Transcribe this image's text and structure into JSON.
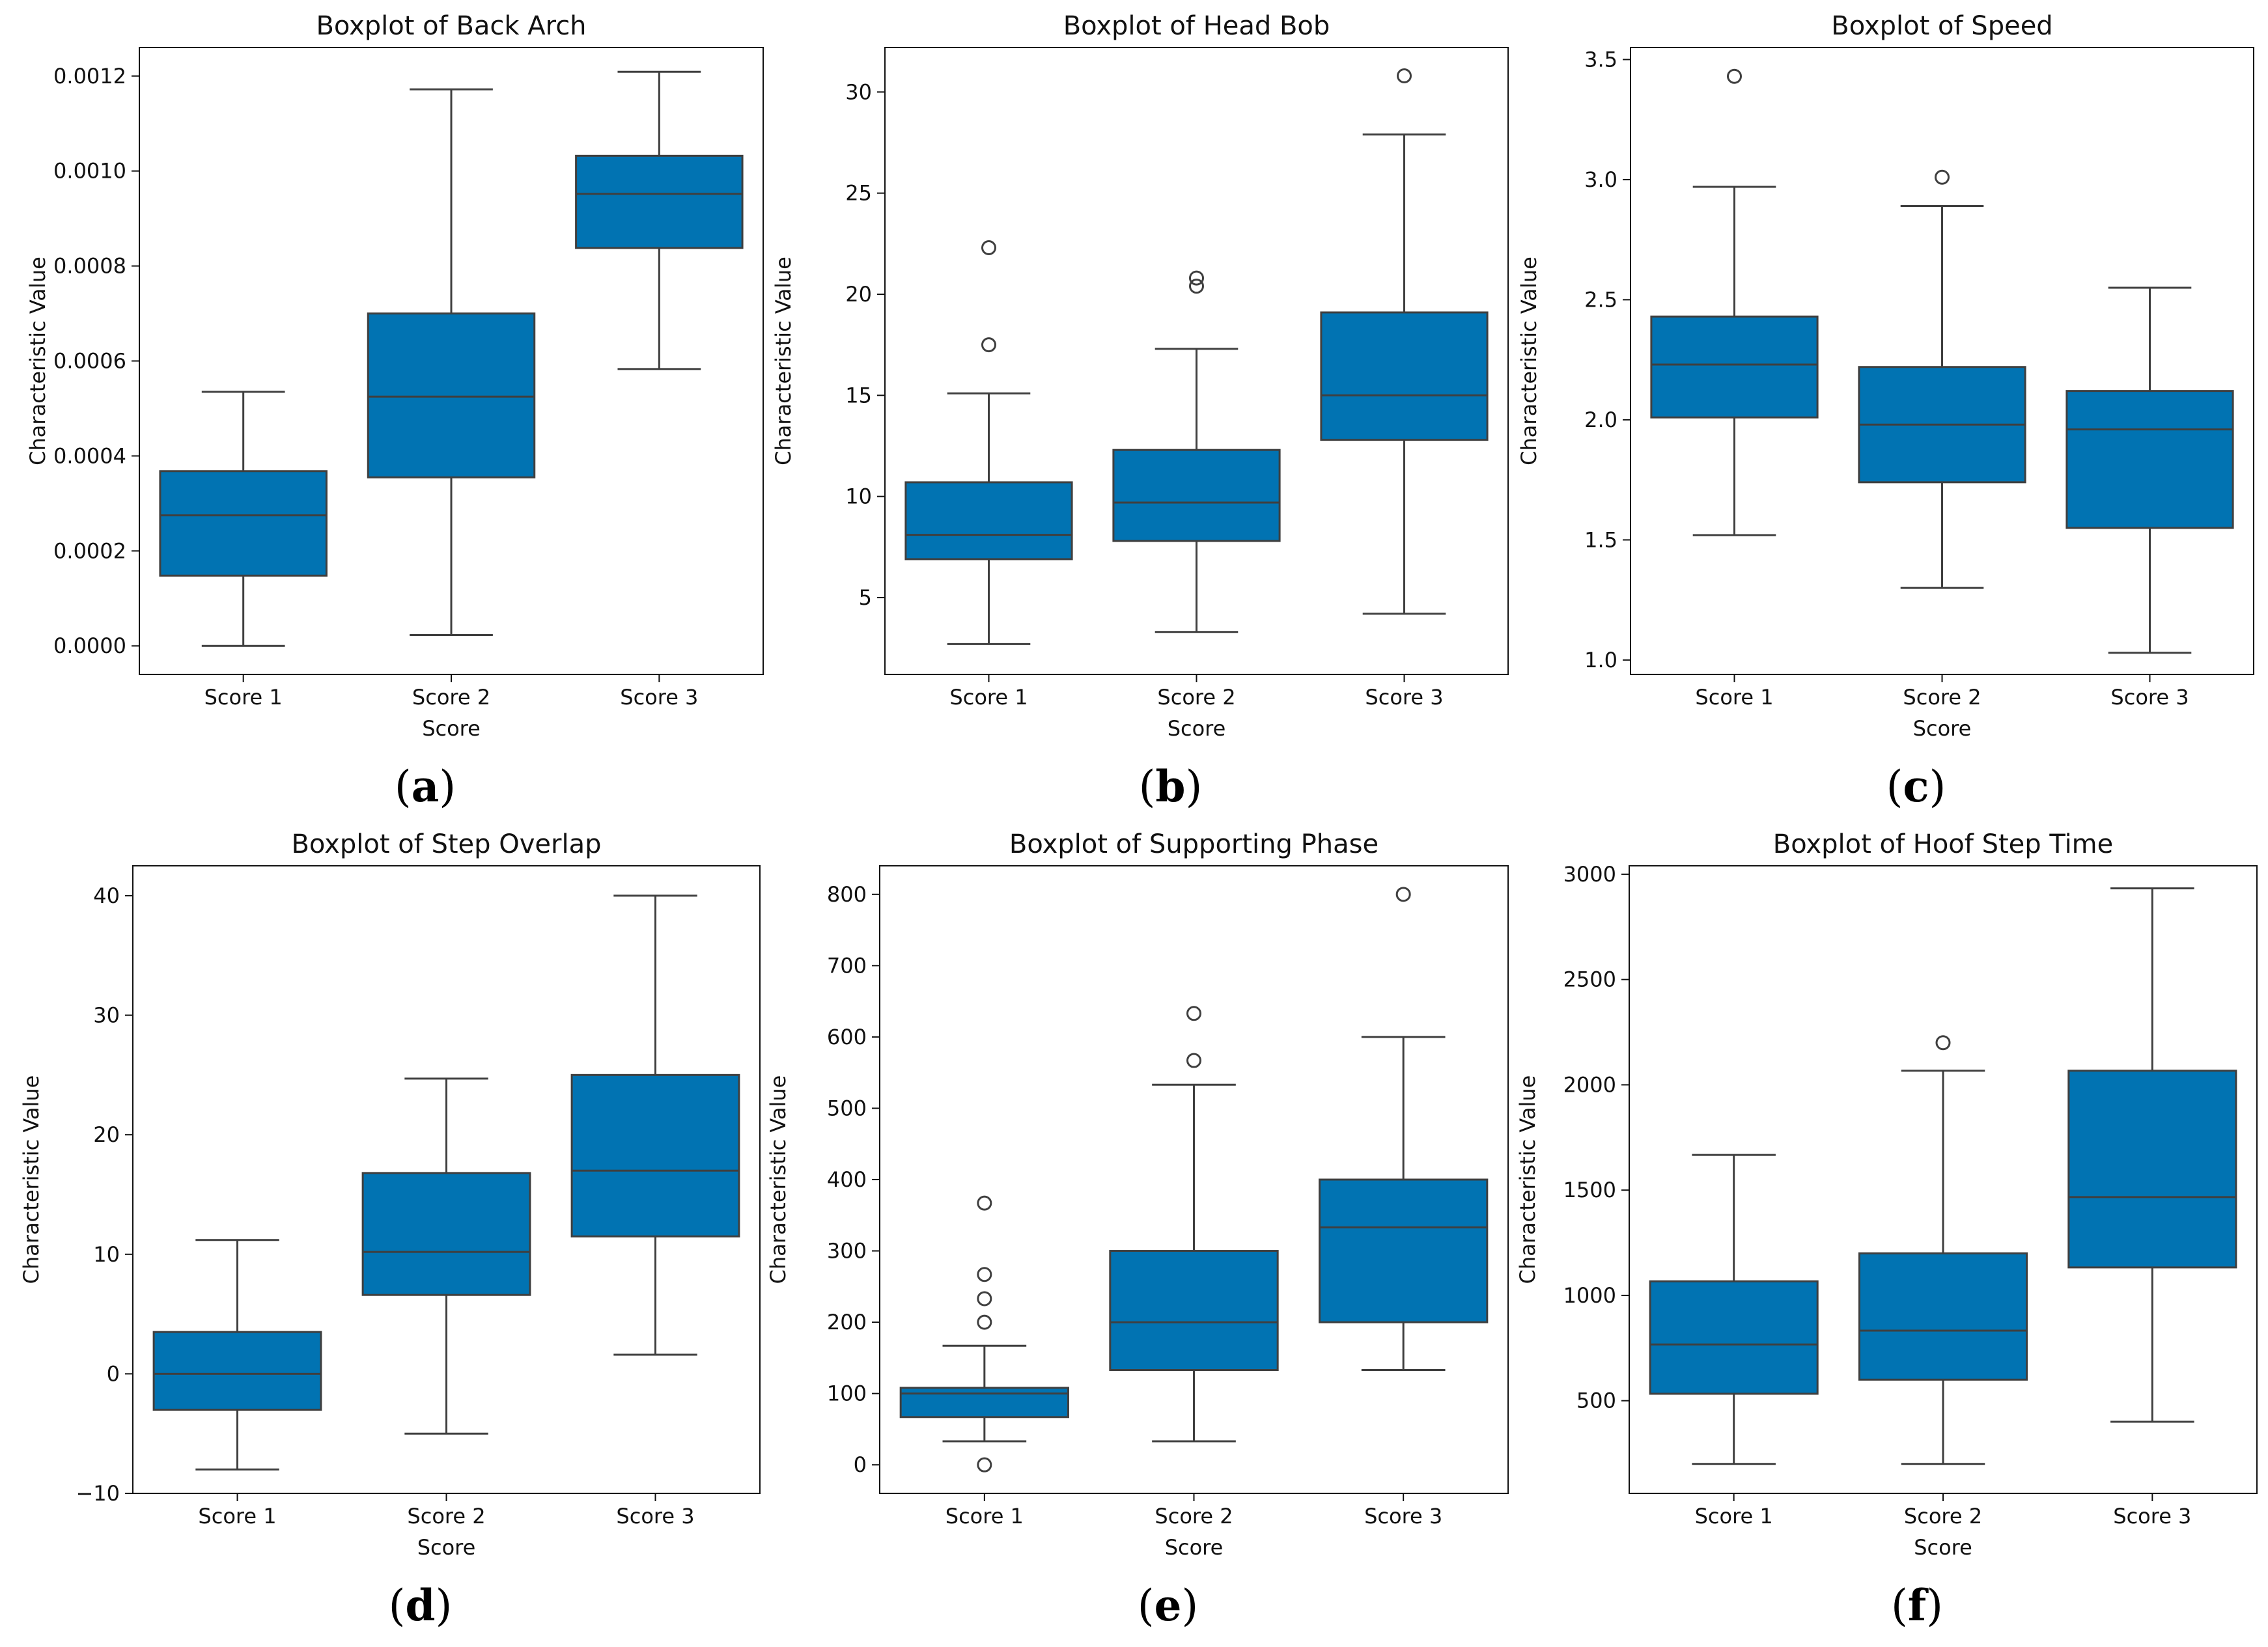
{
  "chart_data": [
    {
      "type": "boxplot",
      "panel_label": "a",
      "title": "Boxplot of Back Arch",
      "xlabel": "Score",
      "ylabel": "Characteristic Value",
      "ylim": [
        -6e-05,
        0.00126
      ],
      "yticks": [
        0,
        0.0002,
        0.0004,
        0.0006,
        0.0008,
        0.001,
        0.0012
      ],
      "ytick_labels": [
        "0.0000",
        "0.0002",
        "0.0004",
        "0.0006",
        "0.0008",
        "0.0010",
        "0.0012"
      ],
      "color": "#0173b2",
      "categories": [
        "Score 1",
        "Score 2",
        "Score 3"
      ],
      "boxes": [
        {
          "whisker_low": 0.0,
          "q1": 0.000148,
          "median": 0.000275,
          "q3": 0.000368,
          "whisker_high": 0.000535,
          "outliers": []
        },
        {
          "whisker_low": 2.3e-05,
          "q1": 0.000355,
          "median": 0.000525,
          "q3": 0.0007,
          "whisker_high": 0.001172,
          "outliers": []
        },
        {
          "whisker_low": 0.000583,
          "q1": 0.000838,
          "median": 0.000952,
          "q3": 0.001032,
          "whisker_high": 0.001209,
          "outliers": []
        }
      ]
    },
    {
      "type": "boxplot",
      "panel_label": "b",
      "title": "Boxplot of Head Bob",
      "xlabel": "Score",
      "ylabel": "Characteristic Value",
      "ylim": [
        1.2,
        32.2
      ],
      "yticks": [
        5,
        10,
        15,
        20,
        25,
        30
      ],
      "ytick_labels": [
        "5",
        "10",
        "15",
        "20",
        "25",
        "30"
      ],
      "color": "#0173b2",
      "categories": [
        "Score 1",
        "Score 2",
        "Score 3"
      ],
      "boxes": [
        {
          "whisker_low": 2.7,
          "q1": 6.9,
          "median": 8.1,
          "q3": 10.7,
          "whisker_high": 15.1,
          "outliers": [
            17.5,
            22.3
          ]
        },
        {
          "whisker_low": 3.3,
          "q1": 7.8,
          "median": 9.7,
          "q3": 12.3,
          "whisker_high": 17.3,
          "outliers": [
            20.4,
            20.8
          ]
        },
        {
          "whisker_low": 4.2,
          "q1": 12.8,
          "median": 15.0,
          "q3": 19.1,
          "whisker_high": 27.9,
          "outliers": [
            30.8
          ]
        }
      ]
    },
    {
      "type": "boxplot",
      "panel_label": "c",
      "title": "Boxplot of Speed",
      "xlabel": "Score",
      "ylabel": "Characteristic Value",
      "ylim": [
        0.94,
        3.55
      ],
      "yticks": [
        1.0,
        1.5,
        2.0,
        2.5,
        3.0,
        3.5
      ],
      "ytick_labels": [
        "1.0",
        "1.5",
        "2.0",
        "2.5",
        "3.0",
        "3.5"
      ],
      "color": "#0173b2",
      "categories": [
        "Score 1",
        "Score 2",
        "Score 3"
      ],
      "boxes": [
        {
          "whisker_low": 1.52,
          "q1": 2.01,
          "median": 2.23,
          "q3": 2.43,
          "whisker_high": 2.97,
          "outliers": [
            3.43
          ]
        },
        {
          "whisker_low": 1.3,
          "q1": 1.74,
          "median": 1.98,
          "q3": 2.22,
          "whisker_high": 2.89,
          "outliers": [
            3.01
          ]
        },
        {
          "whisker_low": 1.03,
          "q1": 1.55,
          "median": 1.96,
          "q3": 2.12,
          "whisker_high": 2.55,
          "outliers": []
        }
      ]
    },
    {
      "type": "boxplot",
      "panel_label": "d",
      "title": "Boxplot of Step Overlap",
      "xlabel": "Score",
      "ylabel": "Characteristic Value",
      "ylim": [
        -10.0,
        42.5
      ],
      "yticks": [
        -10,
        0,
        10,
        20,
        30,
        40
      ],
      "ytick_labels": [
        "−10",
        "0",
        "10",
        "20",
        "30",
        "40"
      ],
      "color": "#0173b2",
      "categories": [
        "Score 1",
        "Score 2",
        "Score 3"
      ],
      "boxes": [
        {
          "whisker_low": -8.0,
          "q1": -3.0,
          "median": 0.0,
          "q3": 3.5,
          "whisker_high": 11.2,
          "outliers": []
        },
        {
          "whisker_low": -5.0,
          "q1": 6.6,
          "median": 10.2,
          "q3": 16.8,
          "whisker_high": 24.7,
          "outliers": []
        },
        {
          "whisker_low": 1.6,
          "q1": 11.5,
          "median": 17.0,
          "q3": 25.0,
          "whisker_high": 40.0,
          "outliers": []
        }
      ]
    },
    {
      "type": "boxplot",
      "panel_label": "e",
      "title": "Boxplot of Supporting Phase",
      "xlabel": "Score",
      "ylabel": "Characteristic Value",
      "ylim": [
        -40,
        840
      ],
      "yticks": [
        0,
        100,
        200,
        300,
        400,
        500,
        600,
        700,
        800
      ],
      "ytick_labels": [
        "0",
        "100",
        "200",
        "300",
        "400",
        "500",
        "600",
        "700",
        "800"
      ],
      "color": "#0173b2",
      "categories": [
        "Score 1",
        "Score 2",
        "Score 3"
      ],
      "boxes": [
        {
          "whisker_low": 33,
          "q1": 67,
          "median": 100,
          "q3": 108,
          "whisker_high": 167,
          "outliers": [
            0,
            200,
            233,
            267,
            367
          ]
        },
        {
          "whisker_low": 33,
          "q1": 133,
          "median": 200,
          "q3": 300,
          "whisker_high": 533,
          "outliers": [
            567,
            633
          ]
        },
        {
          "whisker_low": 133,
          "q1": 200,
          "median": 333,
          "q3": 400,
          "whisker_high": 600,
          "outliers": [
            800
          ]
        }
      ]
    },
    {
      "type": "boxplot",
      "panel_label": "f",
      "title": "Boxplot of Hoof Step Time",
      "xlabel": "Score",
      "ylabel": "Characteristic Value",
      "ylim": [
        60,
        3040
      ],
      "yticks": [
        500,
        1000,
        1500,
        2000,
        2500,
        3000
      ],
      "ytick_labels": [
        "500",
        "1000",
        "1500",
        "2000",
        "2500",
        "3000"
      ],
      "color": "#0173b2",
      "categories": [
        "Score 1",
        "Score 2",
        "Score 3"
      ],
      "boxes": [
        {
          "whisker_low": 200,
          "q1": 533,
          "median": 767,
          "q3": 1067,
          "whisker_high": 1667,
          "outliers": []
        },
        {
          "whisker_low": 200,
          "q1": 600,
          "median": 833,
          "q3": 1200,
          "whisker_high": 2067,
          "outliers": [
            2200
          ]
        },
        {
          "whisker_low": 400,
          "q1": 1133,
          "median": 1467,
          "q3": 2067,
          "whisker_high": 2933,
          "outliers": []
        }
      ]
    }
  ]
}
